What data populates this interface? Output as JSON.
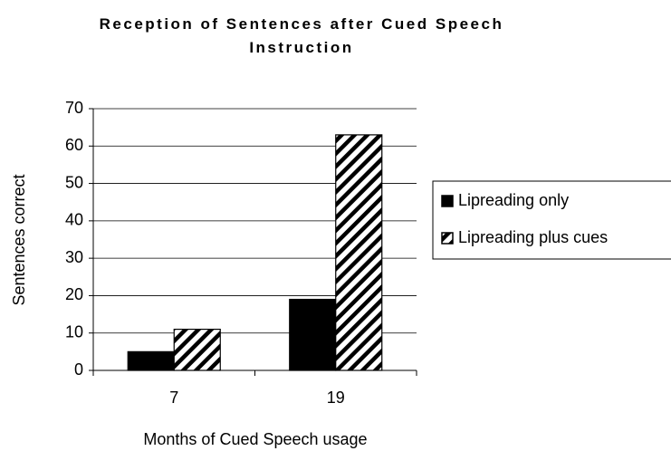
{
  "chart_data": {
    "type": "bar",
    "title": "Reception of Sentences after Cued Speech Instruction",
    "x_label": "Months of Cued Speech usage",
    "y_label": "Sentences correct",
    "categories": [
      "7",
      "19"
    ],
    "series": [
      {
        "name": "Lipreading only",
        "color": "#000000",
        "hatch": false,
        "values": [
          5,
          19
        ]
      },
      {
        "name": "Lipreading plus cues",
        "color": "#000000",
        "hatch": true,
        "values": [
          11,
          63
        ]
      }
    ],
    "ylim": [
      0,
      70
    ],
    "yticks": [
      0,
      10,
      20,
      30,
      40,
      50,
      60,
      70
    ],
    "grid": true,
    "legend": "right"
  }
}
